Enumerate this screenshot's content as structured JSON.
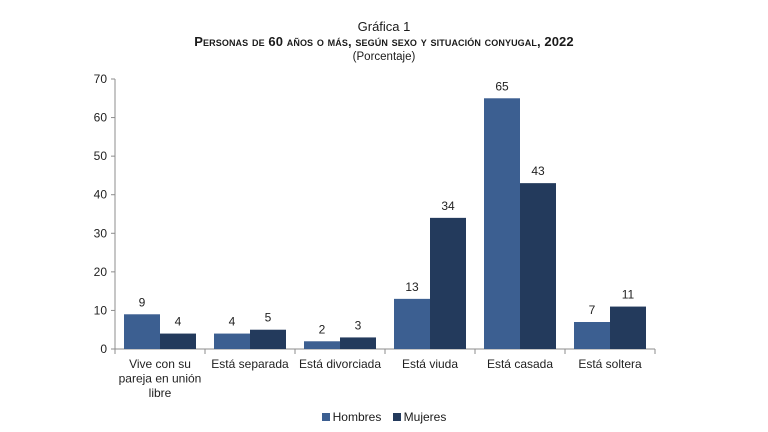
{
  "colors": {
    "hombres": "#3c5f91",
    "mujeres": "#233a5c"
  },
  "chart_data": {
    "type": "bar",
    "supertitle": "Gráfica 1",
    "title": "Personas de 60 años o más, según sexo y situación conyugal, 2022",
    "subtitle": "(Porcentaje)",
    "categories": [
      [
        "Vive con su",
        "pareja en unión",
        "libre"
      ],
      [
        "Está separada"
      ],
      [
        "Está divorciada"
      ],
      [
        "Está viuda"
      ],
      [
        "Está casada"
      ],
      [
        "Está soltera"
      ]
    ],
    "series": [
      {
        "name": "Hombres",
        "values": [
          9,
          4,
          2,
          13,
          65,
          7
        ]
      },
      {
        "name": "Mujeres",
        "values": [
          4,
          5,
          3,
          34,
          43,
          11
        ]
      }
    ],
    "ylim": [
      0,
      70
    ],
    "yticks": [
      0,
      10,
      20,
      30,
      40,
      50,
      60,
      70
    ],
    "grid": false,
    "legend": "bottom"
  }
}
